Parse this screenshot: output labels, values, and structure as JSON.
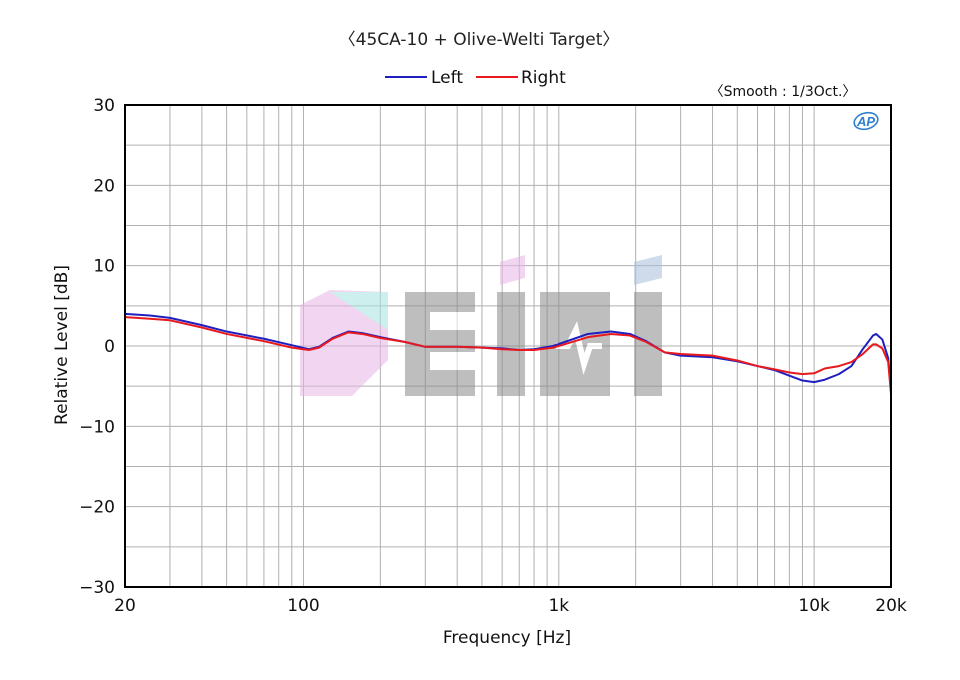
{
  "chart_data": {
    "type": "line",
    "title": "〈45CA-10 + Olive-Welti Target〉",
    "note": "〈Smooth : 1/3Oct.〉",
    "brand": "AP",
    "watermark": "eiii",
    "xlabel": "Frequency [Hz]",
    "ylabel": "Relative Level [dB]",
    "xscale": "log",
    "xlim": [
      20,
      20000
    ],
    "ylim": [
      -30,
      30
    ],
    "grid": true,
    "legend_position": "top-center",
    "x_ticks": [
      {
        "value": 20,
        "label": "20"
      },
      {
        "value": 100,
        "label": "100"
      },
      {
        "value": 1000,
        "label": "1k"
      },
      {
        "value": 10000,
        "label": "10k"
      },
      {
        "value": 20000,
        "label": "20k"
      }
    ],
    "y_ticks": [
      {
        "value": 30,
        "label": "30"
      },
      {
        "value": 20,
        "label": "20"
      },
      {
        "value": 10,
        "label": "10"
      },
      {
        "value": 0,
        "label": "0"
      },
      {
        "value": -10,
        "label": "−10"
      },
      {
        "value": -20,
        "label": "−20"
      },
      {
        "value": -30,
        "label": "−30"
      }
    ],
    "series": [
      {
        "name": "Left",
        "color": "#1f1fbf",
        "points": [
          [
            20,
            4.0
          ],
          [
            25,
            3.8
          ],
          [
            30,
            3.5
          ],
          [
            40,
            2.6
          ],
          [
            50,
            1.8
          ],
          [
            70,
            0.9
          ],
          [
            90,
            0.1
          ],
          [
            105,
            -0.4
          ],
          [
            115,
            -0.1
          ],
          [
            130,
            1.0
          ],
          [
            150,
            1.8
          ],
          [
            170,
            1.6
          ],
          [
            200,
            1.1
          ],
          [
            250,
            0.5
          ],
          [
            300,
            -0.1
          ],
          [
            400,
            -0.1
          ],
          [
            500,
            -0.2
          ],
          [
            600,
            -0.3
          ],
          [
            700,
            -0.5
          ],
          [
            800,
            -0.4
          ],
          [
            950,
            0.0
          ],
          [
            1100,
            0.7
          ],
          [
            1300,
            1.5
          ],
          [
            1600,
            1.8
          ],
          [
            1900,
            1.5
          ],
          [
            2200,
            0.6
          ],
          [
            2600,
            -0.8
          ],
          [
            3000,
            -1.2
          ],
          [
            4000,
            -1.4
          ],
          [
            5000,
            -1.9
          ],
          [
            6000,
            -2.5
          ],
          [
            7000,
            -3.0
          ],
          [
            8000,
            -3.7
          ],
          [
            9000,
            -4.3
          ],
          [
            10000,
            -4.5
          ],
          [
            11000,
            -4.2
          ],
          [
            12500,
            -3.5
          ],
          [
            14000,
            -2.5
          ],
          [
            15500,
            -0.4
          ],
          [
            17000,
            1.3
          ],
          [
            17500,
            1.5
          ],
          [
            18500,
            0.8
          ],
          [
            19500,
            -1.5
          ],
          [
            20000,
            -5.5
          ]
        ]
      },
      {
        "name": "Right",
        "color": "#e8191e",
        "points": [
          [
            20,
            3.6
          ],
          [
            25,
            3.4
          ],
          [
            30,
            3.2
          ],
          [
            40,
            2.3
          ],
          [
            50,
            1.5
          ],
          [
            70,
            0.6
          ],
          [
            90,
            -0.2
          ],
          [
            105,
            -0.5
          ],
          [
            115,
            -0.2
          ],
          [
            130,
            0.9
          ],
          [
            150,
            1.7
          ],
          [
            170,
            1.5
          ],
          [
            200,
            1.0
          ],
          [
            250,
            0.5
          ],
          [
            300,
            -0.1
          ],
          [
            400,
            -0.1
          ],
          [
            500,
            -0.2
          ],
          [
            600,
            -0.4
          ],
          [
            700,
            -0.5
          ],
          [
            800,
            -0.5
          ],
          [
            950,
            -0.2
          ],
          [
            1100,
            0.4
          ],
          [
            1300,
            1.1
          ],
          [
            1600,
            1.5
          ],
          [
            1900,
            1.3
          ],
          [
            2200,
            0.5
          ],
          [
            2600,
            -0.8
          ],
          [
            3000,
            -1.0
          ],
          [
            4000,
            -1.2
          ],
          [
            5000,
            -1.8
          ],
          [
            6000,
            -2.5
          ],
          [
            7000,
            -2.9
          ],
          [
            8000,
            -3.3
          ],
          [
            9000,
            -3.5
          ],
          [
            10000,
            -3.4
          ],
          [
            11000,
            -2.8
          ],
          [
            12500,
            -2.5
          ],
          [
            14000,
            -2.0
          ],
          [
            15500,
            -1.0
          ],
          [
            17000,
            0.2
          ],
          [
            17500,
            0.2
          ],
          [
            18500,
            -0.3
          ],
          [
            19500,
            -2.0
          ],
          [
            20000,
            -6.0
          ]
        ]
      }
    ]
  }
}
